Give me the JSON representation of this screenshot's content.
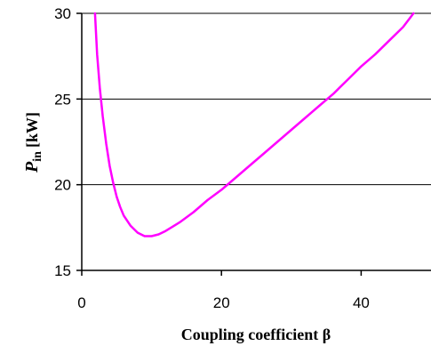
{
  "chart_data": {
    "type": "line",
    "title": "",
    "xlabel": "Coupling coefficient β",
    "ylabel": {
      "main": "P",
      "subscript": "in",
      "unit": "[kW]"
    },
    "xlim": [
      0,
      50
    ],
    "ylim": [
      15,
      30
    ],
    "xticks": [
      0,
      20,
      40
    ],
    "yticks": [
      15,
      20,
      25,
      30
    ],
    "grid": {
      "horizontal": true,
      "vertical": false
    },
    "legend": "none",
    "series": [
      {
        "color": "#ff00ff",
        "x": [
          1.9,
          2.2,
          2.6,
          3.0,
          3.5,
          4.0,
          4.5,
          5.0,
          5.5,
          6.0,
          7.0,
          8.0,
          9.0,
          10.0,
          11.0,
          12.0,
          14.0,
          16.0,
          18.0,
          20.0,
          22.0,
          24.0,
          26.0,
          28.0,
          30.0,
          32.0,
          34.0,
          36.0,
          38.0,
          40.0,
          42.0,
          44.0,
          46.0,
          47.5
        ],
        "values": [
          30.0,
          27.6,
          25.6,
          24.0,
          22.4,
          21.1,
          20.1,
          19.3,
          18.7,
          18.2,
          17.6,
          17.2,
          17.0,
          17.0,
          17.1,
          17.3,
          17.8,
          18.4,
          19.1,
          19.7,
          20.4,
          21.1,
          21.8,
          22.5,
          23.2,
          23.9,
          24.6,
          25.3,
          26.1,
          26.9,
          27.6,
          28.4,
          29.2,
          30.0
        ]
      }
    ]
  }
}
